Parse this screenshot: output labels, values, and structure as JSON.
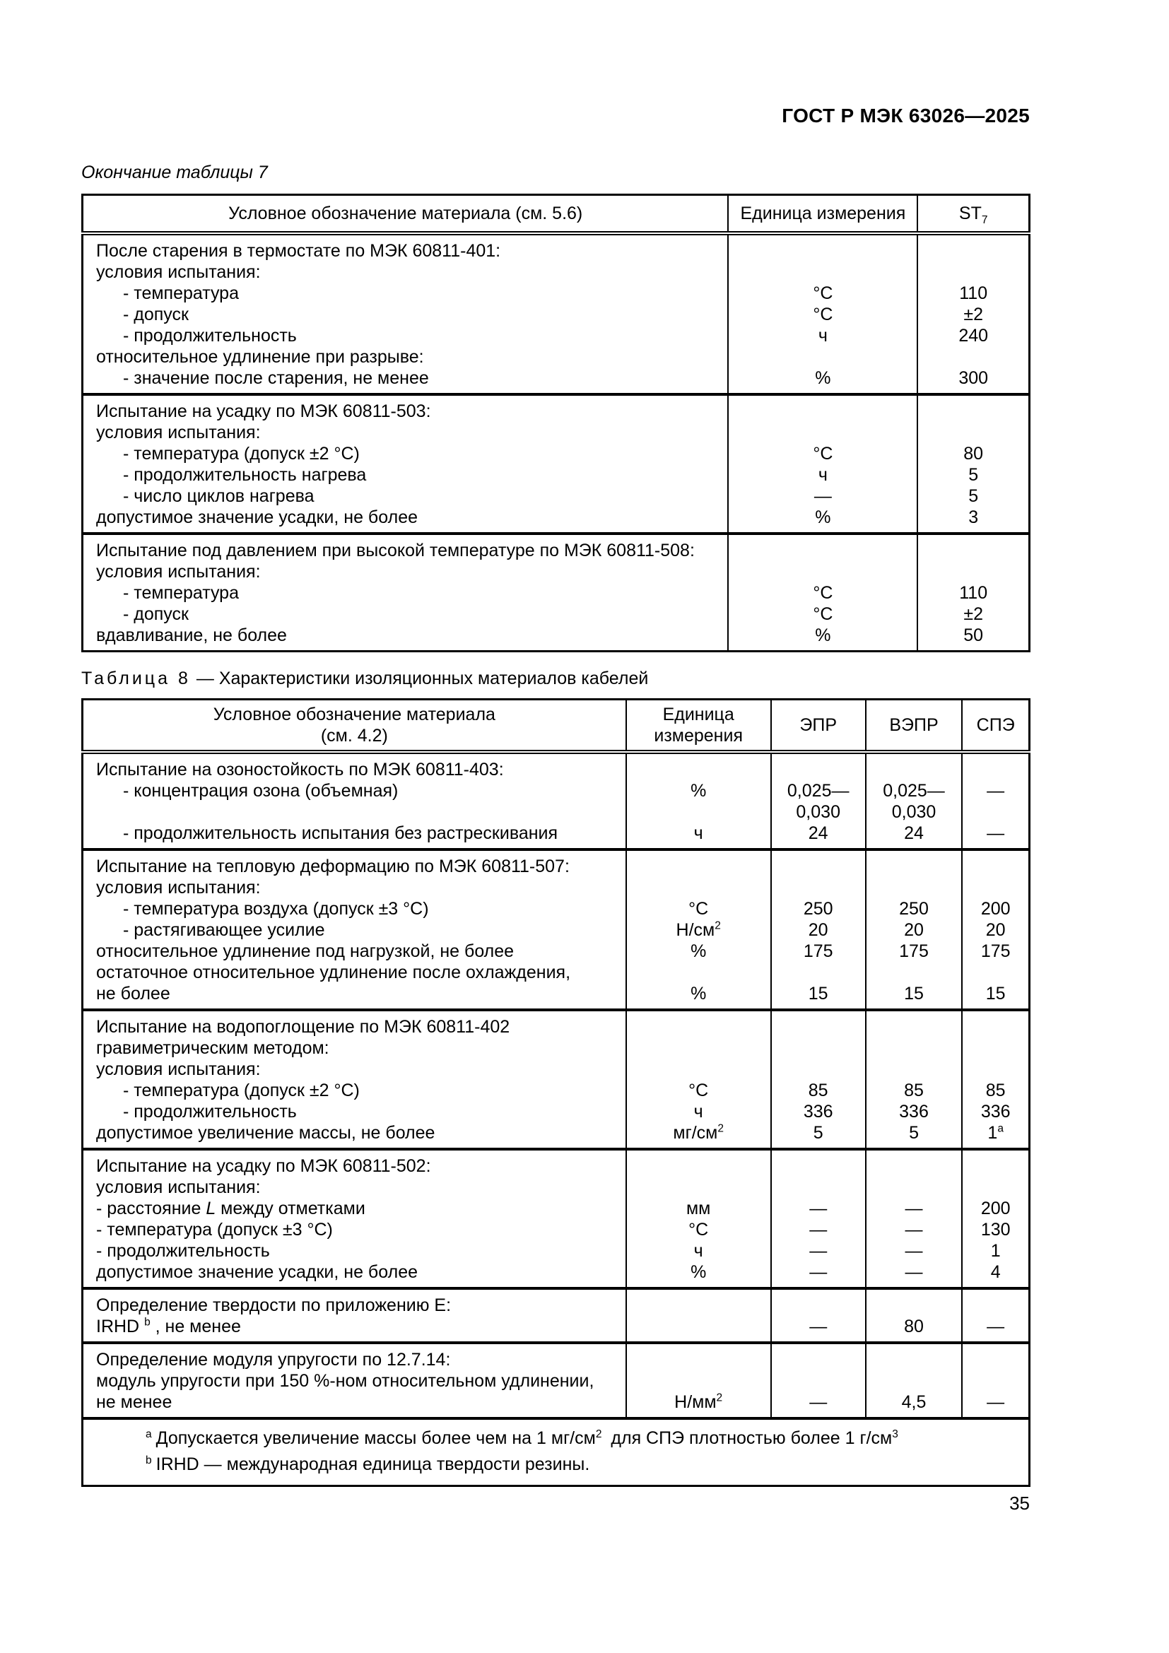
{
  "page": {
    "header_title": "ГОСТ Р МЭК 63026—2025",
    "page_number": "35"
  },
  "table7": {
    "caption": "Окончание таблицы 7",
    "columns": [
      {
        "lines": [
          "Условное обозначение материала (см. 5.6)"
        ],
        "width": "68.2%"
      },
      {
        "lines": [
          "Единица измерения"
        ],
        "width": "20.0%"
      },
      {
        "lines": [
          "ST_{7}"
        ],
        "width": "11.8%"
      }
    ],
    "blocks": [
      {
        "rows": [
          {
            "t": "После старения в термостате по МЭК 60811-401:",
            "i": 0,
            "u": "",
            "v": [
              ""
            ]
          },
          {
            "t": "условия испытания:",
            "i": 0,
            "u": "",
            "v": [
              ""
            ]
          },
          {
            "t": "- температура",
            "i": 1,
            "u": "°С",
            "v": [
              "110"
            ]
          },
          {
            "t": "- допуск",
            "i": 1,
            "u": "°С",
            "v": [
              "±2"
            ]
          },
          {
            "t": "- продолжительность",
            "i": 1,
            "u": "ч",
            "v": [
              "240"
            ]
          },
          {
            "t": "относительное удлинение при разрыве:",
            "i": 0,
            "u": "",
            "v": [
              ""
            ]
          },
          {
            "t": "- значение после старения, не менее",
            "i": 1,
            "u": "%",
            "v": [
              "300"
            ]
          }
        ]
      },
      {
        "rows": [
          {
            "t": "Испытание на усадку по МЭК 60811-503:",
            "i": 0,
            "u": "",
            "v": [
              ""
            ]
          },
          {
            "t": "условия испытания:",
            "i": 0,
            "u": "",
            "v": [
              ""
            ]
          },
          {
            "t": "- температура (допуск ±2 °С)",
            "i": 1,
            "u": "°С",
            "v": [
              "80"
            ]
          },
          {
            "t": "- продолжительность нагрева",
            "i": 1,
            "u": "ч",
            "v": [
              "5"
            ]
          },
          {
            "t": "- число циклов нагрева",
            "i": 1,
            "u": "—",
            "v": [
              "5"
            ]
          },
          {
            "t": "допустимое значение усадки, не более",
            "i": 0,
            "u": "%",
            "v": [
              "3"
            ]
          }
        ]
      },
      {
        "rows": [
          {
            "t": "Испытание под давлением при высокой температуре по МЭК 60811-508:",
            "i": 0,
            "u": "",
            "v": [
              ""
            ]
          },
          {
            "t": "условия испытания:",
            "i": 0,
            "u": "",
            "v": [
              ""
            ]
          },
          {
            "t": "- температура",
            "i": 1,
            "u": "°С",
            "v": [
              "110"
            ]
          },
          {
            "t": "- допуск",
            "i": 1,
            "u": "°С",
            "v": [
              "±2"
            ]
          },
          {
            "t": "вдавливание, не более",
            "i": 0,
            "u": "%",
            "v": [
              "50"
            ]
          }
        ]
      }
    ],
    "footnotes": []
  },
  "table8": {
    "caption_prefix": "Таблица 8",
    "caption_rest": "— Характеристики изоляционных материалов кабелей",
    "columns": [
      {
        "lines": [
          "Условное обозначение материала",
          "(см. 4.2)"
        ],
        "width": "57.4%"
      },
      {
        "lines": [
          "Единица",
          "измерения"
        ],
        "width": "15.3%"
      },
      {
        "lines": [
          "ЭПР"
        ],
        "width": "10.0%"
      },
      {
        "lines": [
          "ВЭПР"
        ],
        "width": "10.2%"
      },
      {
        "lines": [
          "СПЭ"
        ],
        "width": "7.1%"
      }
    ],
    "blocks": [
      {
        "rows": [
          {
            "t": "Испытание на озоностойкость по МЭК 60811-403:",
            "i": 0,
            "u": "",
            "v": [
              "",
              "",
              ""
            ]
          },
          {
            "t": "- концентрация озона (объемная)",
            "i": 1,
            "u": "%",
            "v": [
              "0,025—",
              "0,025—",
              "—"
            ]
          },
          {
            "t": "",
            "i": 0,
            "u": "",
            "v": [
              "0,030",
              "0,030",
              ""
            ]
          },
          {
            "t": "- продолжительность испытания без растрескивания",
            "i": 1,
            "u": "ч",
            "v": [
              "24",
              "24",
              "—"
            ]
          }
        ]
      },
      {
        "rows": [
          {
            "t": "Испытание на тепловую деформацию по МЭК 60811-507:",
            "i": 0,
            "u": "",
            "v": [
              "",
              "",
              ""
            ]
          },
          {
            "t": "условия испытания:",
            "i": 0,
            "u": "",
            "v": [
              "",
              "",
              ""
            ]
          },
          {
            "t": "- температура воздуха (допуск ±3 °С)",
            "i": 1,
            "u": "°С",
            "v": [
              "250",
              "250",
              "200"
            ]
          },
          {
            "t": "- растягивающее усилие",
            "i": 1,
            "u": "Н/см^{2}",
            "v": [
              "20",
              "20",
              "20"
            ]
          },
          {
            "t": "относительное удлинение под нагрузкой, не более",
            "i": 0,
            "u": "%",
            "v": [
              "175",
              "175",
              "175"
            ]
          },
          {
            "t": "остаточное относительное удлинение после охлаждения,",
            "i": 0,
            "u": "",
            "v": [
              "",
              "",
              ""
            ]
          },
          {
            "t": "не более",
            "i": 0,
            "u": "%",
            "v": [
              "15",
              "15",
              "15"
            ]
          }
        ]
      },
      {
        "rows": [
          {
            "t": "Испытание на водопоглощение по МЭК 60811-402",
            "i": 0,
            "u": "",
            "v": [
              "",
              "",
              ""
            ]
          },
          {
            "t": "гравиметрическим методом:",
            "i": 0,
            "u": "",
            "v": [
              "",
              "",
              ""
            ]
          },
          {
            "t": "условия испытания:",
            "i": 0,
            "u": "",
            "v": [
              "",
              "",
              ""
            ]
          },
          {
            "t": "- температура (допуск ±2 °С)",
            "i": 1,
            "u": "°С",
            "v": [
              "85",
              "85",
              "85"
            ]
          },
          {
            "t": "- продолжительность",
            "i": 1,
            "u": "ч",
            "v": [
              "336",
              "336",
              "336"
            ]
          },
          {
            "t": "допустимое увеличение массы, не более",
            "i": 0,
            "u": "мг/см^{2}",
            "v": [
              "5",
              "5",
              "1^{a}"
            ]
          }
        ]
      },
      {
        "rows": [
          {
            "t": "Испытание на усадку по МЭК 60811-502:",
            "i": 0,
            "u": "",
            "v": [
              "",
              "",
              ""
            ]
          },
          {
            "t": "условия испытания:",
            "i": 0,
            "u": "",
            "v": [
              "",
              "",
              ""
            ]
          },
          {
            "t": "- расстояние *L* между отметками",
            "i": 0,
            "u": "мм",
            "v": [
              "—",
              "—",
              "200"
            ]
          },
          {
            "t": "- температура (допуск ±3 °С)",
            "i": 0,
            "u": "°С",
            "v": [
              "—",
              "—",
              "130"
            ]
          },
          {
            "t": "- продолжительность",
            "i": 0,
            "u": "ч",
            "v": [
              "—",
              "—",
              "1"
            ]
          },
          {
            "t": "допустимое значение усадки, не более",
            "i": 0,
            "u": "%",
            "v": [
              "—",
              "—",
              "4"
            ]
          }
        ]
      },
      {
        "rows": [
          {
            "t": "Определение твердости по приложению Е:",
            "i": 0,
            "u": "",
            "v": [
              "",
              "",
              ""
            ]
          },
          {
            "t": "IRHD ^{b} , не менее",
            "i": 0,
            "u": "",
            "v": [
              "—",
              "80",
              "—"
            ]
          }
        ]
      },
      {
        "rows": [
          {
            "t": "Определение модуля упругости по 12.7.14:",
            "i": 0,
            "u": "",
            "v": [
              "",
              "",
              ""
            ]
          },
          {
            "t": "модуль упругости при 150 %-ном относительном удлинении,",
            "i": 0,
            "u": "",
            "v": [
              "",
              "",
              ""
            ]
          },
          {
            "t": "не менее",
            "i": 0,
            "u": "Н/мм^{2}",
            "v": [
              "—",
              "4,5",
              "—"
            ]
          }
        ]
      }
    ],
    "footnotes": [
      {
        "m": "a",
        "text": "Допускается увеличение массы более чем на 1 мг/см^{2} для СПЭ плотностью более 1 г/см^{3}"
      },
      {
        "m": "b",
        "text": "IRHD — международная единица твердости резины."
      }
    ]
  }
}
